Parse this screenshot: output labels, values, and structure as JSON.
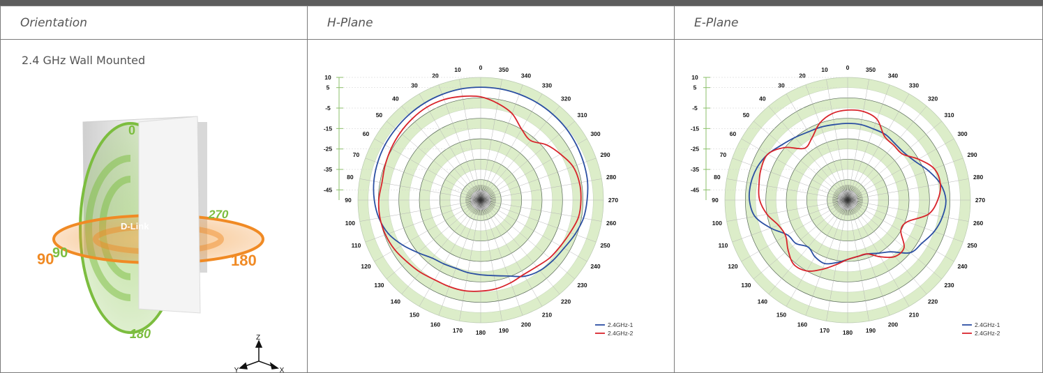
{
  "table": {
    "headers": [
      "Orientation",
      "H-Plane",
      "E-Plane"
    ],
    "orientation_label": "2.4 GHz Wall Mounted"
  },
  "illustration": {
    "brand": "D-Link",
    "vertical_ring_labels": [
      "0",
      "180"
    ],
    "horizontal_ring_labels": [
      "90",
      "90",
      "270",
      "180"
    ],
    "axes": [
      "Z",
      "Y",
      "X"
    ],
    "green": "#7cbd3f",
    "orange": "#f08a24"
  },
  "chart_data": [
    {
      "type": "polar",
      "title": "H-Plane",
      "angle_ticks": [
        "0",
        "10",
        "20",
        "30",
        "40",
        "50",
        "60",
        "70",
        "80",
        "90",
        "100",
        "110",
        "120",
        "130",
        "140",
        "150",
        "160",
        "170",
        "180",
        "190",
        "200",
        "210",
        "220",
        "230",
        "240",
        "250",
        "260",
        "270",
        "280",
        "290",
        "300",
        "310",
        "320",
        "330",
        "340",
        "350"
      ],
      "radial_ticks": [
        "10",
        "5",
        "-5",
        "-15",
        "-25",
        "-35",
        "-45"
      ],
      "rlim": [
        -50,
        10
      ],
      "angle_direction": "counterclockwise",
      "series": [
        {
          "name": "2.4GHz-1",
          "color": "#2b4fa2",
          "angles": [
            0,
            10,
            20,
            30,
            40,
            50,
            60,
            70,
            80,
            90,
            100,
            110,
            120,
            130,
            140,
            150,
            160,
            170,
            180,
            190,
            200,
            210,
            220,
            230,
            240,
            250,
            260,
            270,
            280,
            290,
            300,
            310,
            320,
            330,
            340,
            350
          ],
          "values": [
            5.2,
            5.2,
            5,
            4.8,
            4.5,
            4.2,
            4,
            3.6,
            3,
            2,
            0.5,
            -2,
            -6,
            -10,
            -13,
            -14,
            -14.5,
            -14,
            -13.5,
            -12.5,
            -10.5,
            -7,
            -5,
            -4,
            -3,
            -1,
            1,
            2,
            3,
            3.5,
            4,
            4.5,
            4.8,
            5,
            5.1,
            5.2
          ]
        },
        {
          "name": "2.4GHz-2",
          "color": "#d8232a",
          "angles": [
            0,
            10,
            20,
            30,
            40,
            50,
            60,
            70,
            80,
            90,
            100,
            110,
            120,
            130,
            140,
            150,
            160,
            170,
            180,
            190,
            200,
            210,
            220,
            230,
            240,
            250,
            260,
            270,
            280,
            290,
            300,
            310,
            320,
            330,
            340,
            350
          ],
          "values": [
            0.5,
            1.5,
            2.3,
            2.5,
            2,
            1.3,
            0.5,
            -0.3,
            -1,
            -0.2,
            0,
            -0.5,
            -1.5,
            -3,
            -4,
            -5,
            -5,
            -5,
            -5.5,
            -6,
            -7,
            -8,
            -7.5,
            -6,
            -5,
            -3.5,
            -1.5,
            -1,
            -1,
            -2,
            -5,
            -8,
            -12,
            -10,
            -5,
            -2
          ]
        }
      ],
      "legend": [
        "2.4GHz-1",
        "2.4GHz-2"
      ],
      "legend_position": "bottom-right"
    },
    {
      "type": "polar",
      "title": "E-Plane",
      "angle_ticks": [
        "0",
        "10",
        "20",
        "30",
        "40",
        "50",
        "60",
        "70",
        "80",
        "90",
        "100",
        "110",
        "120",
        "130",
        "140",
        "150",
        "160",
        "170",
        "180",
        "190",
        "200",
        "210",
        "220",
        "230",
        "240",
        "250",
        "260",
        "270",
        "280",
        "290",
        "300",
        "310",
        "320",
        "330",
        "340",
        "350"
      ],
      "radial_ticks": [
        "10",
        "5",
        "-5",
        "-15",
        "-25",
        "-35",
        "-45"
      ],
      "rlim": [
        -50,
        10
      ],
      "angle_direction": "counterclockwise",
      "series": [
        {
          "name": "2.4GHz-1",
          "color": "#2b4fa2",
          "angles": [
            0,
            10,
            20,
            30,
            40,
            50,
            60,
            70,
            80,
            90,
            100,
            110,
            120,
            130,
            140,
            150,
            160,
            170,
            180,
            190,
            200,
            210,
            220,
            230,
            240,
            250,
            260,
            270,
            280,
            290,
            300,
            310,
            320,
            330,
            340,
            350
          ],
          "values": [
            -12.5,
            -12.5,
            -12,
            -11.5,
            -10,
            -8,
            -5,
            -3,
            -2,
            -2,
            -4,
            -10,
            -16,
            -17,
            -20,
            -18,
            -17,
            -19,
            -21,
            -22,
            -22,
            -20,
            -17,
            -10,
            -8,
            -5,
            -3,
            -2,
            -4,
            -8,
            -12,
            -14,
            -14,
            -13,
            -13,
            -12.5
          ]
        },
        {
          "name": "2.4GHz-2",
          "color": "#d8232a",
          "angles": [
            0,
            10,
            20,
            30,
            40,
            50,
            60,
            70,
            80,
            90,
            100,
            110,
            120,
            130,
            140,
            150,
            160,
            170,
            180,
            190,
            200,
            210,
            220,
            230,
            240,
            250,
            260,
            270,
            280,
            290,
            300,
            310,
            320,
            330,
            340,
            350
          ],
          "values": [
            -6,
            -7,
            -10,
            -15,
            -17,
            -10,
            -5,
            -5,
            -6,
            -7,
            -10,
            -14,
            -15,
            -12,
            -9,
            -10,
            -14,
            -18,
            -21,
            -22,
            -22,
            -18,
            -14,
            -14,
            -20,
            -19,
            -10,
            -6,
            -4,
            -5,
            -10,
            -15,
            -15,
            -14,
            -8,
            -6
          ]
        }
      ],
      "legend": [
        "2.4GHz-1",
        "2.4GHz-2"
      ],
      "legend_position": "bottom-right"
    }
  ]
}
